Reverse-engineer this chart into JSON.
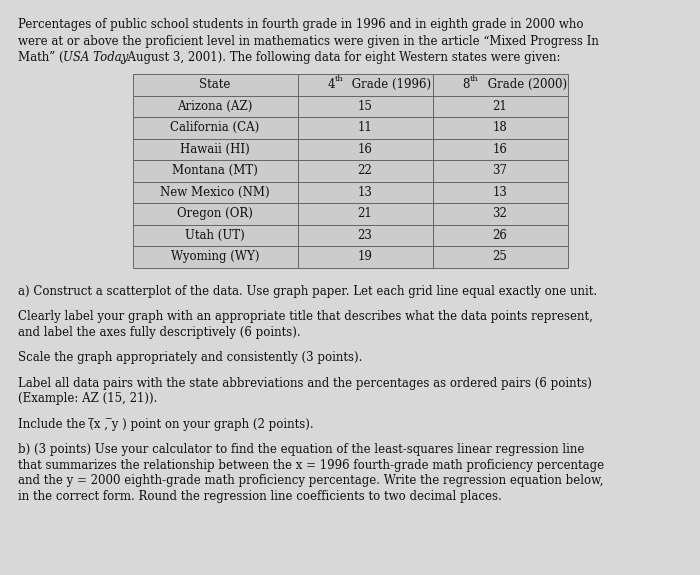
{
  "bg_color": "#d8d8d8",
  "table_bg": "#cccccc",
  "table_border": "#666666",
  "text_color": "#111111",
  "font_size": 8.5,
  "table_font_size": 8.5,
  "title_lines": [
    "Percentages of public school students in fourth grade in 1996 and in eighth grade in 2000 who",
    "were at or above the proficient level in mathematics were given in the article “Mixed Progress In",
    [
      "Math” (",
      "USA Today",
      ", August 3, 2001). The following data for eight Western states were given:"
    ]
  ],
  "table_headers": [
    "State",
    "4th Grade (1996)",
    "8th Grade (2000)"
  ],
  "table_data": [
    [
      "Arizona (AZ)",
      "15",
      "21"
    ],
    [
      "California (CA)",
      "11",
      "18"
    ],
    [
      "Hawaii (HI)",
      "16",
      "16"
    ],
    [
      "Montana (MT)",
      "22",
      "37"
    ],
    [
      "New Mexico (NM)",
      "13",
      "13"
    ],
    [
      "Oregon (OR)",
      "21",
      "32"
    ],
    [
      "Utah (UT)",
      "23",
      "26"
    ],
    [
      "Wyoming (WY)",
      "19",
      "25"
    ]
  ],
  "body_paragraphs": [
    [
      [
        "a) Construct a scatterplot of the data. Use graph paper. Let each grid line equal exactly one unit."
      ]
    ],
    [
      [
        "Clearly label your graph with an appropriate title that describes what the data points represent,"
      ],
      [
        "and label the axes fully descriptively (6 points)."
      ]
    ],
    [
      [
        "Scale the graph appropriately and consistently (3 points)."
      ]
    ],
    [
      [
        "Label all data pairs with the state abbreviations and the percentages as ordered pairs (6 points)"
      ],
      [
        "(Example: AZ (15, 21))."
      ]
    ],
    [
      [
        "Include the (̅x , ̅y ) point on your graph (2 points)."
      ]
    ],
    [
      [
        "b) (3 points) Use your calculator to find the equation of the least-squares linear regression line"
      ],
      [
        "that summarizes the relationship between the x = 1996 fourth-grade math proficiency percentage"
      ],
      [
        "and the y = 2000 eighth-grade math proficiency percentage. Write the regression equation below,"
      ],
      [
        "in the correct form. Round the regression line coefficients to two decimal places."
      ]
    ]
  ]
}
